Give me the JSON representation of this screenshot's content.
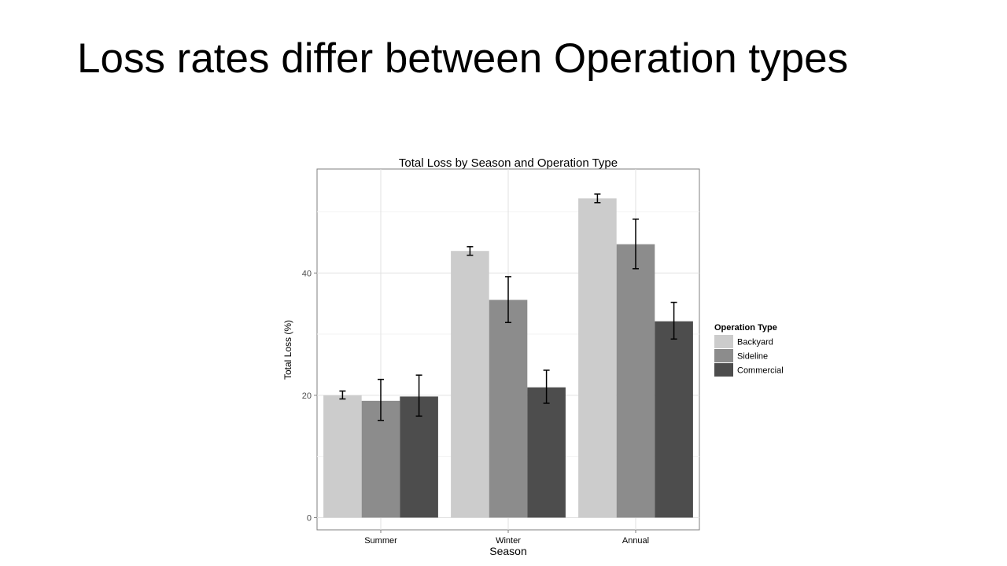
{
  "slide": {
    "title": "Loss rates differ between Operation types"
  },
  "chart_data": {
    "type": "bar",
    "title": "Total Loss by Season and Operation Type",
    "xlabel": "Season",
    "ylabel": "Total Loss (%)",
    "categories": [
      "Summer",
      "Winter",
      "Annual"
    ],
    "ylim": [
      -2,
      57
    ],
    "yticks": [
      0,
      20,
      40
    ],
    "grid": true,
    "legend": {
      "title": "Operation Type",
      "position": "right"
    },
    "series": [
      {
        "name": "Backyard",
        "color": "#cccccc",
        "values": [
          20.0,
          43.6,
          52.2
        ],
        "err_low": [
          19.4,
          42.9,
          51.5
        ],
        "err_high": [
          20.7,
          44.3,
          52.9
        ]
      },
      {
        "name": "Sideline",
        "color": "#8c8c8c",
        "values": [
          19.1,
          35.6,
          44.7
        ],
        "err_low": [
          15.9,
          31.9,
          40.7
        ],
        "err_high": [
          22.6,
          39.4,
          48.8
        ]
      },
      {
        "name": "Commercial",
        "color": "#4d4d4d",
        "values": [
          19.8,
          21.3,
          32.1
        ],
        "err_low": [
          16.6,
          18.7,
          29.2
        ],
        "err_high": [
          23.3,
          24.1,
          35.2
        ]
      }
    ]
  }
}
